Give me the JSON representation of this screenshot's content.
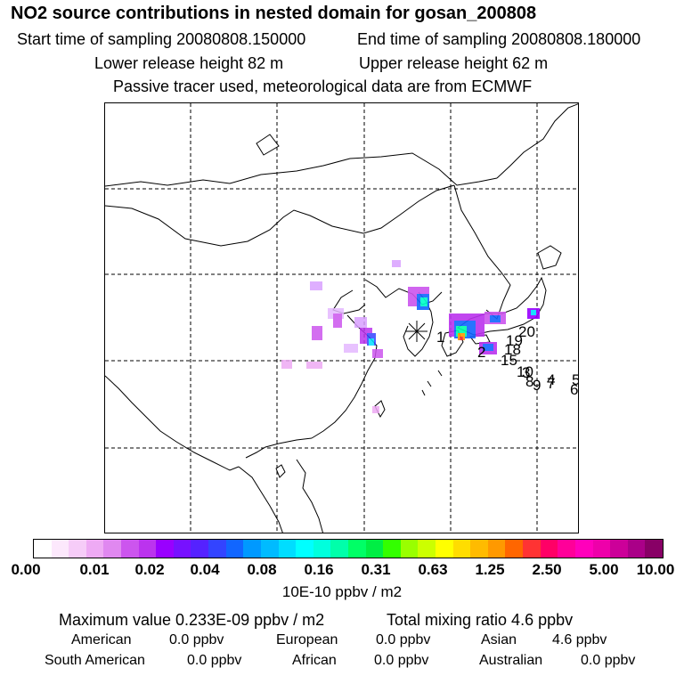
{
  "header": {
    "title": "NO2 source contributions in nested domain for gosan_200808",
    "start_time": "Start time of sampling 20080808.150000",
    "end_time": "End time of sampling 20080808.180000",
    "lower_release": "Lower release height   82 m",
    "upper_release": "Upper release height   62 m",
    "tracer_note": "Passive tracer used, meteorological data are from ECMWF"
  },
  "map": {
    "site_marker": "gosan receptor",
    "track_labels": [
      "1",
      "2",
      "10",
      "15",
      "18",
      "19",
      "20",
      "4",
      "5",
      "6",
      "7",
      "8",
      "9",
      "3"
    ]
  },
  "colorbar": {
    "colors": [
      "#ffffff",
      "#fce8fc",
      "#f6ccf8",
      "#eeaaf4",
      "#e088f0",
      "#cc55ee",
      "#bb33ee",
      "#9900ff",
      "#7711ff",
      "#5522ff",
      "#3344ff",
      "#1166ff",
      "#0099ff",
      "#00bbff",
      "#00ddff",
      "#00ffff",
      "#00ffdd",
      "#00ffaa",
      "#00ff66",
      "#00ee44",
      "#33ff00",
      "#99ff00",
      "#ccff00",
      "#ffff00",
      "#ffdd00",
      "#ffbb00",
      "#ff9900",
      "#ff6600",
      "#ff3333",
      "#ff0066",
      "#ff0099",
      "#ff00bb",
      "#ee00aa",
      "#cc0099",
      "#aa0088",
      "#880066"
    ],
    "tick_labels": [
      "0.00",
      "0.01",
      "0.02",
      "0.04",
      "0.08",
      "0.16",
      "0.31",
      "0.63",
      "1.25",
      "2.50",
      "5.00",
      "10.00"
    ],
    "unit": "10E-10 ppbv / m2"
  },
  "summary": {
    "max_value": "Maximum value  0.233E-09 ppbv / m2",
    "total_mixing": "Total mixing ratio        4.6 ppbv",
    "regions": [
      {
        "name": "American",
        "value": "0.0 ppbv"
      },
      {
        "name": "European",
        "value": "0.0 ppbv"
      },
      {
        "name": "Asian",
        "value": "4.6 ppbv"
      },
      {
        "name": "South American",
        "value": "0.0 ppbv"
      },
      {
        "name": "African",
        "value": "0.0 ppbv"
      },
      {
        "name": "Australian",
        "value": "0.0 ppbv"
      }
    ]
  }
}
